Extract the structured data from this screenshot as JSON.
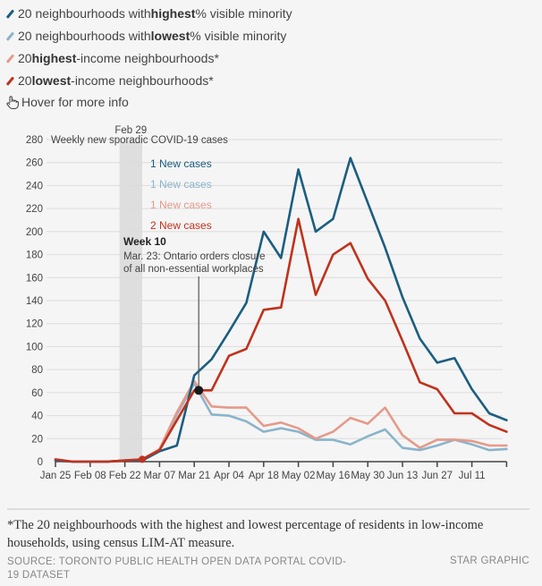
{
  "legend": [
    {
      "pre": "20 neighbourhoods with ",
      "bold": "highest",
      "post": " % visible minority",
      "color": "#1b5e80"
    },
    {
      "pre": "20 neighbourhoods with ",
      "bold": "lowest",
      "post": " % visible minority",
      "color": "#8ab4cb"
    },
    {
      "pre": "20 ",
      "bold": "highest",
      "post": "-income neighbourhoods*",
      "color": "#e59a8a"
    },
    {
      "pre": "20 ",
      "bold": "lowest",
      "post": "-income neighbourhoods*",
      "color": "#c0321d"
    }
  ],
  "hover_hint": "Hover for more info",
  "footnote": "*The 20 neighbourhoods with the highest and lowest percentage of residents in low-income households, using census LIM-AT measure.",
  "source": "SOURCE: TORONTO PUBLIC HEALTH OPEN DATA PORTAL COVID-19 DATASET",
  "credit": "STAR GRAPHIC",
  "chart_data": {
    "type": "line",
    "title": "Weekly new sporadic COVID-19 cases",
    "xlabel": "",
    "ylabel": "",
    "ylim": [
      0,
      280
    ],
    "yticks": [
      0,
      20,
      40,
      60,
      80,
      100,
      120,
      140,
      160,
      180,
      200,
      220,
      240,
      260,
      280
    ],
    "grid": true,
    "x": [
      "Jan 25",
      "Feb 01",
      "Feb 08",
      "Feb 15",
      "Feb 22",
      "Feb 29",
      "Mar 07",
      "Mar 14",
      "Mar 21",
      "Mar 28",
      "Apr 04",
      "Apr 11",
      "Apr 18",
      "Apr 25",
      "May 02",
      "May 09",
      "May 16",
      "May 23",
      "May 30",
      "Jun 06",
      "Jun 13",
      "Jun 20",
      "Jun 27",
      "Jul 04",
      "Jul 11",
      "Jul 18",
      "Jul 25"
    ],
    "xtick_labels": [
      "Jan 25",
      "",
      "Feb 08",
      "",
      "Feb 22",
      "",
      "Mar 07",
      "",
      "Mar 21",
      "",
      "Apr 04",
      "",
      "Apr 18",
      "",
      "May 02",
      "",
      "May 16",
      "",
      "May 30",
      "",
      "Jun 13",
      "",
      "Jun 27",
      "",
      "Jul 11",
      "",
      ""
    ],
    "series": [
      {
        "name": "20 neighbourhoods with highest % visible minority",
        "color": "#1b5e80",
        "values": [
          1,
          0,
          0,
          0,
          1,
          1,
          9,
          14,
          75,
          89,
          113,
          138,
          200,
          177,
          254,
          200,
          211,
          264,
          225,
          186,
          143,
          107,
          86,
          90,
          63,
          42,
          36
        ]
      },
      {
        "name": "20 neighbourhoods with lowest % visible minority",
        "color": "#8ab4cb",
        "values": [
          1,
          0,
          0,
          0,
          1,
          2,
          10,
          41,
          68,
          41,
          40,
          35,
          26,
          29,
          26,
          19,
          19,
          15,
          22,
          28,
          12,
          10,
          14,
          19,
          15,
          10,
          11
        ]
      },
      {
        "name": "20 highest-income neighbourhoods",
        "color": "#e59a8a",
        "values": [
          1,
          0,
          0,
          0,
          1,
          2,
          11,
          43,
          70,
          48,
          47,
          47,
          31,
          34,
          29,
          20,
          26,
          38,
          33,
          47,
          23,
          12,
          19,
          19,
          18,
          14,
          14
        ]
      },
      {
        "name": "20 lowest-income neighbourhoods",
        "color": "#c0321d",
        "values": [
          2,
          0,
          0,
          0,
          1,
          2,
          10,
          36,
          62,
          62,
          92,
          98,
          132,
          134,
          211,
          145,
          180,
          190,
          159,
          140,
          105,
          69,
          63,
          42,
          42,
          32,
          26
        ]
      }
    ],
    "hover_labels": [
      {
        "text": "1 New cases",
        "color": "#1b5e80"
      },
      {
        "text": "1 New cases",
        "color": "#8ab4cb"
      },
      {
        "text": "1 New cases",
        "color": "#e59a8a"
      },
      {
        "text": "2 New cases",
        "color": "#c0321d"
      }
    ],
    "highlight_band": {
      "label": "Feb 29",
      "from": "Feb 22",
      "to": "Feb 29"
    },
    "marker_point": {
      "series": "20 highest-income neighbourhoods",
      "x": "Feb 29",
      "value": 2
    },
    "annotation": {
      "title": "Week 10",
      "text_line1": "Mar. 23: Ontario orders closure",
      "text_line2": "of all non-essential workplaces",
      "x": "Mar 21",
      "value": 62
    }
  }
}
